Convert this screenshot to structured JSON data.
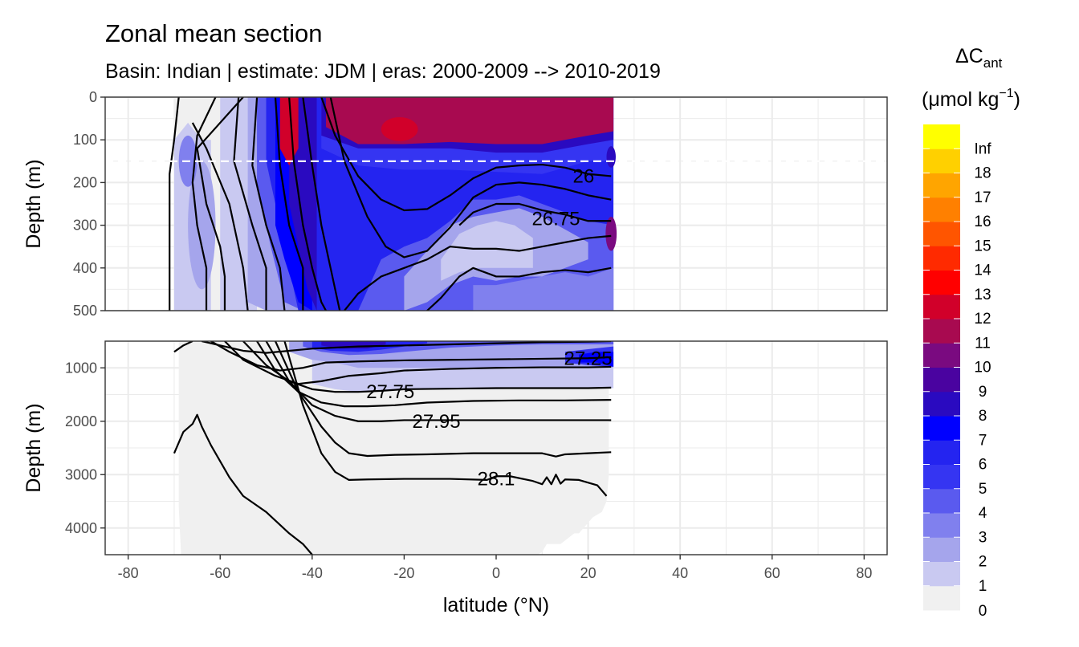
{
  "title": "Zonal mean section",
  "subtitle": "Basin: Indian | estimate: JDM  | eras: 2000-2009 --> 2010-2019",
  "chart_data": {
    "type": "heatmap",
    "description_units": "Delta C_ant in umol kg-1, filled contour zonal mean section with density contour lines",
    "x": {
      "label": "latitude (°N)",
      "range": [
        -85,
        85
      ],
      "ticks": [
        -80,
        -60,
        -40,
        -20,
        0,
        20,
        40,
        60,
        80
      ],
      "tick_labels": [
        "-80",
        "-60",
        "-40",
        "-20",
        "0",
        "20",
        "40",
        "60",
        "80"
      ]
    },
    "panels": [
      {
        "name": "upper",
        "ylabel": "Depth (m)",
        "ylim": [
          500,
          0
        ],
        "ticks": [
          0,
          100,
          200,
          300,
          400,
          500
        ],
        "tick_labels": [
          "0",
          "100",
          "200",
          "300",
          "400",
          "500"
        ],
        "reference_depth": 150
      },
      {
        "name": "lower",
        "ylabel": "Depth (m)",
        "ylim": [
          4500,
          500
        ],
        "ticks": [
          1000,
          2000,
          3000,
          4000
        ],
        "tick_labels": [
          "1000",
          "2000",
          "3000",
          "4000"
        ]
      }
    ],
    "data_extent": {
      "lat_min": -70,
      "lat_max": 25
    },
    "legend": {
      "title_main": "ΔC",
      "title_sub": "ant",
      "title_unit_pre": "(μmol kg",
      "title_unit_sup": "−1",
      "title_unit_post": ")",
      "breaks": [
        "0",
        "1",
        "2",
        "3",
        "4",
        "5",
        "6",
        "7",
        "8",
        "9",
        "10",
        "11",
        "12",
        "13",
        "14",
        "15",
        "16",
        "17",
        "18",
        "Inf"
      ],
      "colors": [
        "#f0f0f0",
        "#c9c9f1",
        "#a5a5ec",
        "#8080ee",
        "#5a5aef",
        "#3535f2",
        "#2424f0",
        "#0000ff",
        "#2a0ac0",
        "#4a03a0",
        "#7a0a80",
        "#a80a50",
        "#d1002a",
        "#ff0000",
        "#ff2a00",
        "#ff5500",
        "#ff8000",
        "#ffa500",
        "#ffd000",
        "#ffff00"
      ]
    },
    "contours": [
      {
        "label": "26",
        "lat": 19,
        "depth": 185
      },
      {
        "label": "26.75",
        "lat": 13,
        "depth": 285
      },
      {
        "label": "27.25",
        "lat": 20,
        "depth": 820
      },
      {
        "label": "27.75",
        "lat": -23,
        "depth": 1450
      },
      {
        "label": "27.95",
        "lat": -13,
        "depth": 2000
      },
      {
        "label": "28.1",
        "lat": 0,
        "depth": 3080
      }
    ],
    "surface_isopycnals_upper": [
      {
        "depth": [
          0,
          100,
          180,
          320,
          500
        ],
        "lat": [
          -69,
          -70,
          -71,
          -71,
          -71
        ]
      },
      {
        "depth": [
          0,
          90,
          200,
          300,
          400,
          500
        ],
        "lat": [
          -61,
          -65,
          -66,
          -65,
          -63,
          -63
        ]
      },
      {
        "depth": [
          0,
          120,
          250,
          350,
          420,
          500
        ],
        "lat": [
          -55,
          -65,
          -63,
          -60,
          -59,
          -59
        ]
      },
      {
        "depth": [
          60,
          120,
          250,
          400,
          500
        ],
        "lat": [
          -66,
          -63,
          -58,
          -55,
          -54
        ]
      },
      {
        "depth": [
          0,
          150,
          300,
          400,
          500
        ],
        "lat": [
          -56,
          -57,
          -53,
          -50,
          -50
        ]
      },
      {
        "depth": [
          0,
          160,
          300,
          400,
          500
        ],
        "lat": [
          -52,
          -53,
          -50,
          -47,
          -46
        ]
      },
      {
        "depth": [
          0,
          160,
          300,
          400,
          500
        ],
        "lat": [
          -48,
          -47,
          -45,
          -42,
          -42
        ]
      }
    ],
    "isopycnals_upper": [
      {
        "depth": [
          0,
          150,
          300,
          400,
          480,
          500
        ],
        "lat": [
          -45,
          -44,
          -42,
          -40,
          -38,
          -37
        ]
      },
      {
        "depth": [
          0,
          160,
          300,
          400,
          500
        ],
        "lat": [
          -42,
          -40,
          -38,
          -36,
          -34
        ]
      },
      {
        "lat": [
          -38,
          -35,
          -30,
          -25,
          -20,
          -15,
          -10,
          -5,
          0,
          5,
          10,
          15,
          20,
          25
        ],
        "depth": [
          0,
          90,
          185,
          240,
          265,
          262,
          230,
          190,
          165,
          160,
          158,
          165,
          180,
          185
        ]
      },
      {
        "lat": [
          -36,
          -33,
          -28,
          -24,
          -20,
          -15,
          -10,
          -5,
          0,
          5,
          10,
          15,
          20,
          25
        ],
        "depth": [
          0,
          150,
          280,
          350,
          375,
          360,
          305,
          235,
          205,
          200,
          205,
          215,
          230,
          240
        ]
      },
      {
        "lat": [
          -8,
          -5,
          0,
          5,
          10,
          15,
          20,
          25
        ],
        "depth": [
          300,
          270,
          250,
          250,
          265,
          275,
          290,
          290
        ]
      },
      {
        "lat": [
          -33,
          -30,
          -25,
          -20,
          -15,
          -10,
          -5,
          0,
          5,
          10,
          15,
          20,
          25
        ],
        "depth": [
          500,
          460,
          420,
          400,
          380,
          350,
          355,
          355,
          360,
          350,
          340,
          330,
          325
        ]
      },
      {
        "lat": [
          -15,
          -12,
          -8,
          -5,
          0,
          5,
          10,
          15,
          20,
          25
        ],
        "depth": [
          500,
          470,
          420,
          400,
          420,
          420,
          410,
          405,
          410,
          400
        ]
      }
    ],
    "isopycnals_lower": [
      {
        "lat": [
          -70,
          -68,
          -66
        ],
        "depth": [
          700,
          580,
          500
        ]
      },
      {
        "lat": [
          -64,
          -60,
          -55,
          -50,
          -45,
          -40,
          -35,
          -30,
          -20,
          -10,
          0,
          10,
          20,
          25
        ],
        "depth": [
          500,
          580,
          680,
          720,
          680,
          640,
          620,
          600,
          580,
          560,
          540,
          520,
          510,
          500
        ]
      },
      {
        "lat": [
          -62,
          -58,
          -52,
          -47,
          -42,
          -37,
          -30,
          -20,
          -10,
          0,
          10,
          20,
          25
        ],
        "depth": [
          500,
          700,
          950,
          1050,
          1000,
          900,
          880,
          860,
          850,
          840,
          830,
          820,
          800
        ]
      },
      {
        "lat": [
          -59,
          -55,
          -48,
          -43,
          -38,
          -32,
          -25,
          -20,
          -10,
          0,
          10,
          20,
          25
        ],
        "depth": [
          500,
          850,
          1150,
          1300,
          1250,
          1150,
          1100,
          1050,
          1020,
          1000,
          990,
          990,
          980
        ]
      },
      {
        "lat": [
          -55,
          -50,
          -45,
          -40,
          -35,
          -30,
          -25,
          -20,
          -10,
          0,
          10,
          20,
          25
        ],
        "depth": [
          500,
          950,
          1250,
          1400,
          1450,
          1450,
          1430,
          1400,
          1390,
          1380,
          1380,
          1380,
          1370
        ]
      },
      {
        "lat": [
          -52,
          -48,
          -43,
          -38,
          -33,
          -28,
          -22,
          -15,
          -5,
          5,
          15,
          25
        ],
        "depth": [
          500,
          1050,
          1450,
          1650,
          1720,
          1720,
          1700,
          1650,
          1620,
          1610,
          1610,
          1600
        ]
      },
      {
        "lat": [
          -50,
          -45,
          -40,
          -35,
          -30,
          -25,
          -20,
          -10,
          0,
          10,
          20,
          25
        ],
        "depth": [
          500,
          1250,
          1700,
          1900,
          2000,
          2000,
          1980,
          1980,
          1980,
          1980,
          1980,
          1980
        ]
      },
      {
        "lat": [
          -48,
          -43,
          -38,
          -35,
          -32,
          -28,
          -22,
          -15,
          -5,
          5,
          10,
          13,
          15,
          20,
          25
        ],
        "depth": [
          500,
          1450,
          2100,
          2400,
          2600,
          2650,
          2630,
          2620,
          2600,
          2600,
          2600,
          2660,
          2620,
          2600,
          2580
        ]
      },
      {
        "lat": [
          -46,
          -42,
          -38,
          -35,
          -32,
          -28,
          -20,
          -10,
          -2,
          0,
          3,
          8,
          10,
          11,
          12,
          13,
          14,
          15,
          18,
          22,
          24
        ],
        "depth": [
          500,
          1700,
          2600,
          2950,
          3100,
          3090,
          3080,
          3080,
          3100,
          3030,
          3030,
          3120,
          3180,
          3050,
          3180,
          3000,
          3170,
          3090,
          3100,
          3200,
          3400
        ]
      },
      {
        "lat": [
          -70,
          -68,
          -66,
          -65,
          -64,
          -62,
          -58,
          -55,
          -50,
          -45,
          -42,
          -40
        ],
        "depth": [
          2600,
          2200,
          2050,
          1880,
          2100,
          2450,
          3050,
          3400,
          3700,
          4100,
          4300,
          4500
        ]
      }
    ]
  }
}
